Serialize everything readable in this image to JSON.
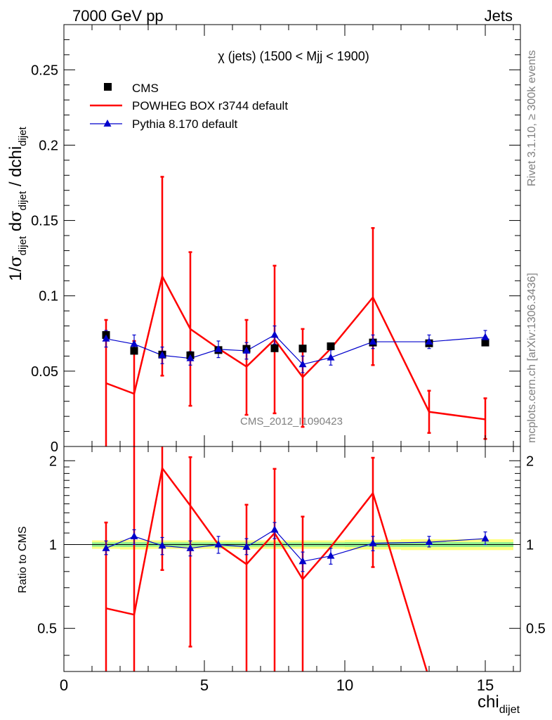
{
  "header": {
    "left": "7000 GeV pp",
    "right": "Jets"
  },
  "side_labels": {
    "rivet": "Rivet 3.1.10, ≥ 300k events",
    "mcplots": "mcplots.cern.ch [arXiv:1306.3436]"
  },
  "watermark": "CMS_2012_I1090423",
  "chart_data": [
    {
      "type": "scatter",
      "panel": "main",
      "title": "χ (jets) (1500 < Mjj < 1900)",
      "ylabel": "1/σ_dijet dσ_dijet / dchi_dijet",
      "xlim": [
        0,
        16.25
      ],
      "ylim": [
        0,
        0.28
      ],
      "yticks": [
        0,
        0.05,
        0.1,
        0.15,
        0.2,
        0.25
      ],
      "ytick_labels": [
        "0",
        "0.05",
        "0.1",
        "0.15",
        "0.2",
        "0.25"
      ],
      "legend_position": "top-left",
      "series": [
        {
          "name": "CMS",
          "style": "markers",
          "marker": "square",
          "color": "#000000",
          "x": [
            1.5,
            2.5,
            3.5,
            4.5,
            5.5,
            6.5,
            7.5,
            8.5,
            9.5,
            11,
            13,
            15
          ],
          "y": [
            0.074,
            0.0635,
            0.061,
            0.0605,
            0.064,
            0.0648,
            0.0652,
            0.065,
            0.0665,
            0.069,
            0.0685,
            0.069
          ]
        },
        {
          "name": "POWHEG BOX r3744 default",
          "style": "line",
          "color": "#ff0000",
          "x": [
            1.5,
            2.5,
            3.5,
            4.5,
            5.5,
            6.5,
            7.5,
            8.5,
            9.5,
            11,
            13,
            15
          ],
          "y": [
            0.042,
            0.035,
            0.113,
            0.078,
            0.065,
            0.053,
            0.071,
            0.046,
            0.065,
            0.099,
            0.023,
            0.018
          ],
          "y_low": [
            0,
            0,
            0.047,
            0.027,
            0.065,
            0.021,
            0.022,
            0.013,
            0.065,
            0.054,
            0.009,
            0.005
          ],
          "y_high": [
            0.084,
            0.07,
            0.179,
            0.129,
            0.065,
            0.084,
            0.12,
            0.078,
            0.065,
            0.145,
            0.037,
            0.032
          ]
        },
        {
          "name": "Pythia 8.170 default",
          "style": "line-markers",
          "marker": "triangle",
          "color": "#0000cc",
          "x": [
            1.5,
            2.5,
            3.5,
            4.5,
            5.5,
            6.5,
            7.5,
            8.5,
            9.5,
            11,
            13,
            15
          ],
          "y": [
            0.0715,
            0.068,
            0.0605,
            0.0585,
            0.0645,
            0.0635,
            0.074,
            0.0545,
            0.059,
            0.0695,
            0.0695,
            0.0725
          ],
          "y_low": [
            0.066,
            0.063,
            0.055,
            0.054,
            0.059,
            0.058,
            0.068,
            0.049,
            0.054,
            0.065,
            0.065,
            0.068
          ],
          "y_high": [
            0.077,
            0.074,
            0.066,
            0.063,
            0.07,
            0.069,
            0.08,
            0.06,
            0.064,
            0.074,
            0.074,
            0.077
          ]
        }
      ]
    },
    {
      "type": "scatter",
      "panel": "ratio",
      "xlabel": "chi_dijet",
      "ylabel": "Ratio to CMS",
      "xlim": [
        0,
        16.25
      ],
      "ylim": [
        0.35,
        2.25
      ],
      "xticks": [
        0,
        5,
        10,
        15
      ],
      "xtick_labels": [
        "0",
        "5",
        "10",
        "15"
      ],
      "yticks": [
        0.5,
        1,
        2
      ],
      "ytick_labels": [
        "0.5",
        "1",
        "2"
      ],
      "band": {
        "x_edges": [
          1,
          2,
          3,
          4,
          5,
          6,
          7,
          8,
          9,
          10,
          12,
          14,
          16
        ],
        "outer": [
          0.035,
          0.04,
          0.035,
          0.035,
          0.035,
          0.035,
          0.035,
          0.035,
          0.035,
          0.04,
          0.045,
          0.045
        ],
        "inner": [
          0.018,
          0.02,
          0.018,
          0.018,
          0.018,
          0.018,
          0.018,
          0.018,
          0.018,
          0.02,
          0.02,
          0.02
        ]
      },
      "series": [
        {
          "name": "POWHEG BOX r3744 default",
          "color": "#ff0000",
          "x": [
            1.5,
            2.5,
            3.5,
            4.5,
            5.5,
            6.5,
            7.5,
            8.5,
            9.5,
            11,
            13
          ],
          "y": [
            0.59,
            0.56,
            1.88,
            1.38,
            1.0,
            0.85,
            1.1,
            0.75,
            0.98,
            1.53,
            0.33
          ],
          "y_low": [
            0.25,
            0.25,
            0.81,
            0.43,
            1.0,
            0.25,
            0.25,
            0.25,
            0.98,
            0.83,
            0.33
          ],
          "y_high": [
            1.2,
            2.3,
            2.3,
            2.06,
            1.0,
            1.39,
            1.87,
            1.26,
            0.98,
            2.05,
            0.33
          ]
        },
        {
          "name": "Pythia 8.170 default",
          "color": "#0000cc",
          "x": [
            1.5,
            2.5,
            3.5,
            4.5,
            5.5,
            6.5,
            7.5,
            8.5,
            9.5,
            11,
            13,
            15
          ],
          "y": [
            0.97,
            1.07,
            0.99,
            0.97,
            1.0,
            0.98,
            1.13,
            0.87,
            0.91,
            1.01,
            1.02,
            1.05
          ],
          "y_low": [
            0.92,
            1.0,
            0.92,
            0.91,
            0.93,
            0.92,
            1.05,
            0.8,
            0.85,
            0.95,
            0.98,
            1.0
          ],
          "y_high": [
            1.03,
            1.13,
            1.06,
            1.03,
            1.07,
            1.05,
            1.2,
            0.94,
            0.97,
            1.07,
            1.07,
            1.11
          ]
        }
      ]
    }
  ]
}
